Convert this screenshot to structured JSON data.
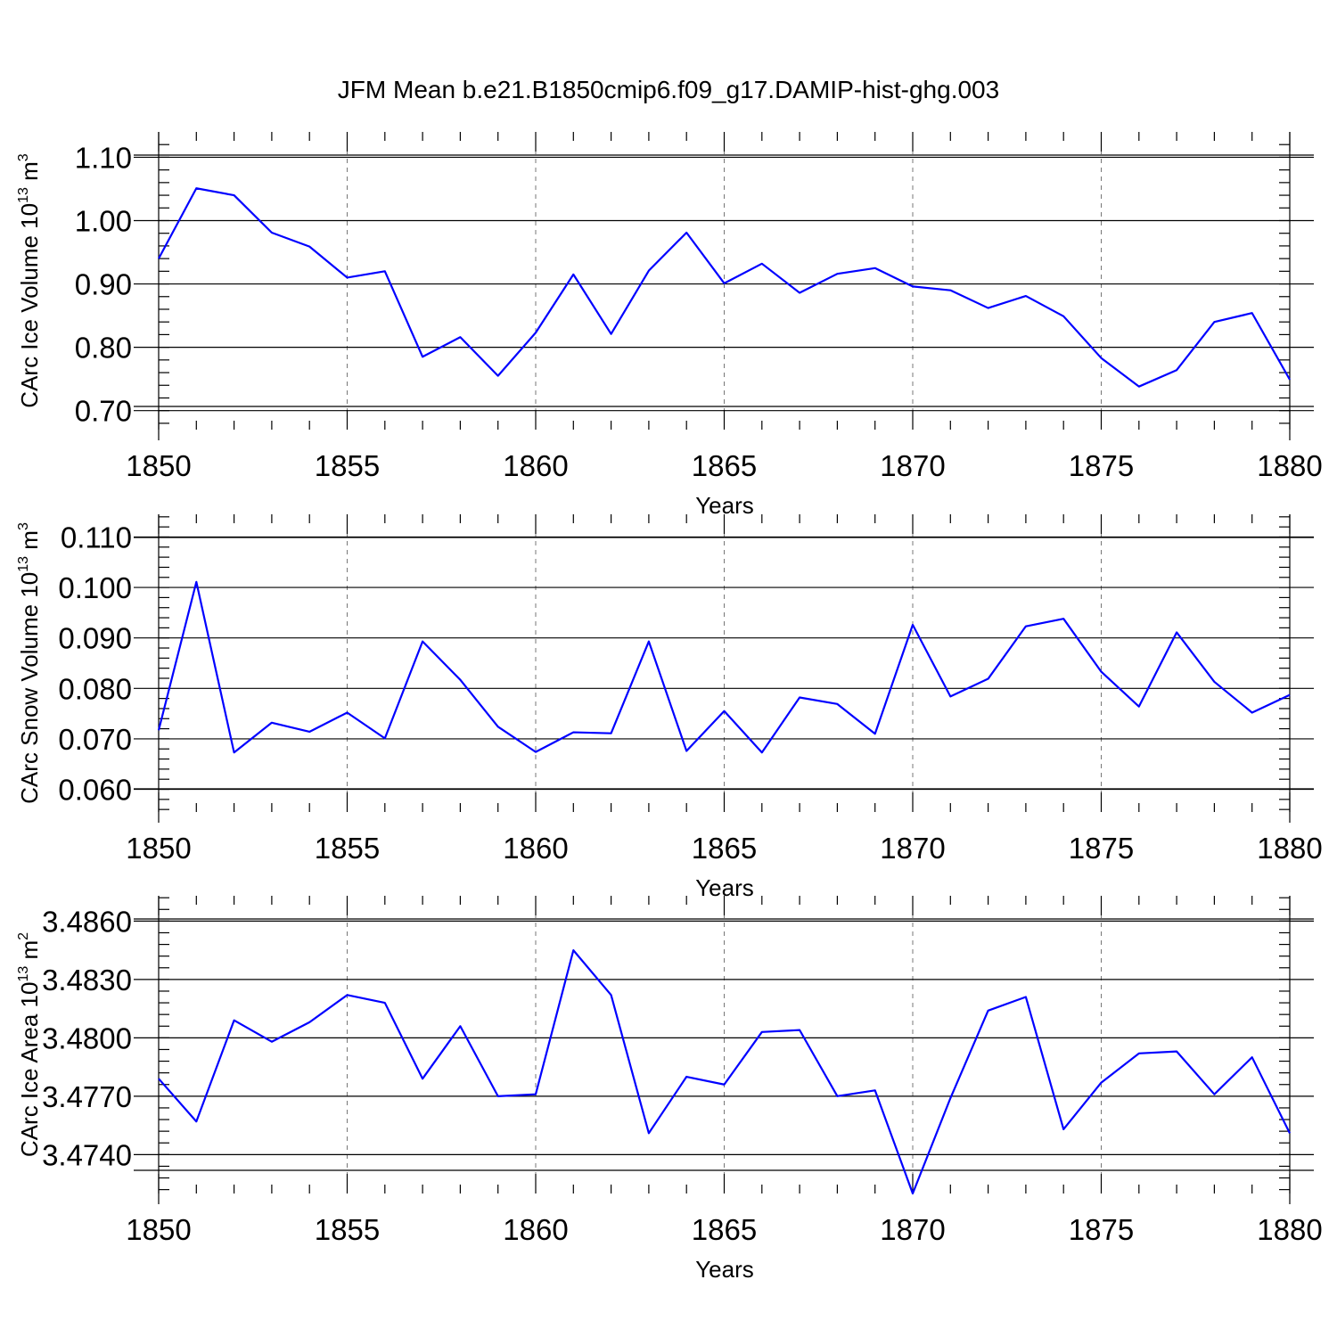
{
  "figure_title": "JFM Mean b.e21.B1850cmip6.f09_g17.DAMIP-hist-ghg.003",
  "chart_data": [
    {
      "type": "line",
      "title": "JFM Mean b.e21.B1850cmip6.f09_g17.DAMIP-hist-ghg.003",
      "ylabel": "CArc Ice Volume 10^13 m^3",
      "ylabel_parts": {
        "main": "CArc Ice Volume 10",
        "exp1": "13",
        "unit": " m",
        "exp2": "3"
      },
      "xlabel": "Years",
      "xlim": [
        1850,
        1880
      ],
      "ylim": [
        0.67,
        1.14
      ],
      "xticks": [
        "1850",
        "1855",
        "1860",
        "1865",
        "1870",
        "1875",
        "1880"
      ],
      "xtick_values": [
        1850,
        1855,
        1860,
        1865,
        1870,
        1875,
        1880
      ],
      "yticks": [
        "0.70",
        "0.80",
        "0.90",
        "1.00",
        "1.10"
      ],
      "ytick_values": [
        0.7,
        0.8,
        0.9,
        1.0,
        1.1
      ],
      "y_minor_step": 0.02,
      "grid": "vertical dashed at major x ticks",
      "color": "#0000ff",
      "x": [
        1850,
        1851,
        1852,
        1853,
        1854,
        1855,
        1856,
        1857,
        1858,
        1859,
        1860,
        1861,
        1862,
        1863,
        1864,
        1865,
        1866,
        1867,
        1868,
        1869,
        1870,
        1871,
        1872,
        1873,
        1874,
        1875,
        1876,
        1877,
        1878,
        1879,
        1880
      ],
      "values": [
        0.94,
        1.051,
        1.04,
        0.981,
        0.959,
        0.91,
        0.92,
        0.785,
        0.816,
        0.755,
        0.823,
        0.915,
        0.821,
        0.921,
        0.981,
        0.901,
        0.932,
        0.886,
        0.916,
        0.925,
        0.896,
        0.89,
        0.862,
        0.881,
        0.849,
        0.783,
        0.738,
        0.764,
        0.84,
        0.854,
        0.749
      ]
    },
    {
      "type": "line",
      "ylabel": "CArc Snow Volume 10^13 m^3",
      "ylabel_parts": {
        "main": "CArc Snow Volume 10",
        "exp1": "13",
        "unit": " m",
        "exp2": "3"
      },
      "xlabel": "Years",
      "xlim": [
        1850,
        1880
      ],
      "ylim": [
        0.0555,
        0.1145
      ],
      "xticks": [
        "1850",
        "1855",
        "1860",
        "1865",
        "1870",
        "1875",
        "1880"
      ],
      "xtick_values": [
        1850,
        1855,
        1860,
        1865,
        1870,
        1875,
        1880
      ],
      "yticks": [
        "0.060",
        "0.070",
        "0.080",
        "0.090",
        "0.100",
        "0.110"
      ],
      "ytick_values": [
        0.06,
        0.07,
        0.08,
        0.09,
        0.1,
        0.11
      ],
      "y_minor_step": 0.002,
      "grid": "vertical dashed at major x ticks",
      "color": "#0000ff",
      "x": [
        1850,
        1851,
        1852,
        1853,
        1854,
        1855,
        1856,
        1857,
        1858,
        1859,
        1860,
        1861,
        1862,
        1863,
        1864,
        1865,
        1866,
        1867,
        1868,
        1869,
        1870,
        1871,
        1872,
        1873,
        1874,
        1875,
        1876,
        1877,
        1878,
        1879,
        1880
      ],
      "values": [
        0.0717,
        0.1011,
        0.0673,
        0.0732,
        0.0714,
        0.0752,
        0.0701,
        0.0893,
        0.0817,
        0.0724,
        0.0674,
        0.0713,
        0.0711,
        0.0893,
        0.0676,
        0.0755,
        0.0673,
        0.0782,
        0.0769,
        0.071,
        0.0926,
        0.0784,
        0.0819,
        0.0923,
        0.0938,
        0.0833,
        0.0764,
        0.0911,
        0.0813,
        0.0752,
        0.0787
      ]
    },
    {
      "type": "line",
      "ylabel": "CArc Ice Area 10^13 m^2",
      "ylabel_parts": {
        "main": "CArc Ice Area 10",
        "exp1": "13",
        "unit": " m",
        "exp2": "2"
      },
      "xlabel": "Years",
      "xlim": [
        1850,
        1880
      ],
      "ylim": [
        3.472,
        3.4873
      ],
      "xticks": [
        "1850",
        "1855",
        "1860",
        "1865",
        "1870",
        "1875",
        "1880"
      ],
      "xtick_values": [
        1850,
        1855,
        1860,
        1865,
        1870,
        1875,
        1880
      ],
      "yticks": [
        "3.4740",
        "3.4770",
        "3.4800",
        "3.4830",
        "3.4860"
      ],
      "ytick_values": [
        3.474,
        3.477,
        3.48,
        3.483,
        3.486
      ],
      "y_minor_step": 0.0006,
      "grid": "vertical dashed at major x ticks",
      "color": "#0000ff",
      "x": [
        1850,
        1851,
        1852,
        1853,
        1854,
        1855,
        1856,
        1857,
        1858,
        1859,
        1860,
        1861,
        1862,
        1863,
        1864,
        1865,
        1866,
        1867,
        1868,
        1869,
        1870,
        1871,
        1872,
        1873,
        1874,
        1875,
        1876,
        1877,
        1878,
        1879,
        1880
      ],
      "values": [
        3.4779,
        3.4757,
        3.4809,
        3.4798,
        3.4808,
        3.4822,
        3.4818,
        3.4779,
        3.4806,
        3.477,
        3.4771,
        3.4845,
        3.4822,
        3.4751,
        3.478,
        3.4776,
        3.4803,
        3.4804,
        3.477,
        3.4773,
        3.472,
        3.4769,
        3.4814,
        3.4821,
        3.4753,
        3.4777,
        3.4792,
        3.4793,
        3.4771,
        3.479,
        3.4751
      ]
    }
  ]
}
